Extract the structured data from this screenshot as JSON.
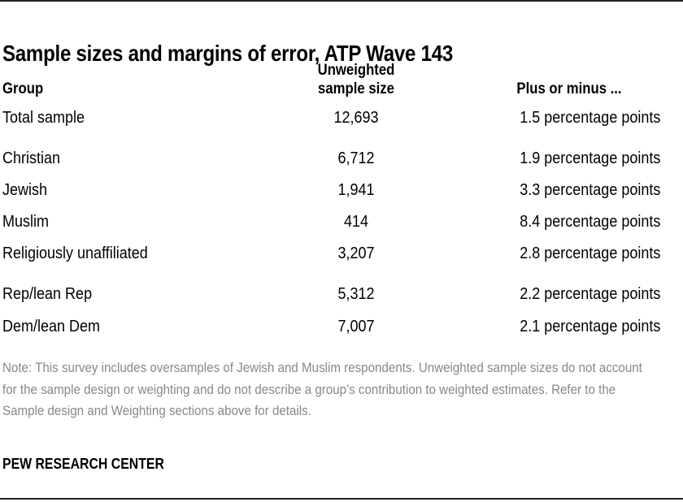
{
  "title": "Sample sizes and margins of error, ATP Wave 143",
  "columns": {
    "group": "Group",
    "sample_line1": "Unweighted",
    "sample_line2": "sample size",
    "moe": "Plus or minus ..."
  },
  "rows": [
    {
      "group": "Total sample",
      "n": "12,693",
      "moe": "1.5 percentage points"
    },
    {
      "group": "Christian",
      "n": "6,712",
      "moe": "1.9 percentage points"
    },
    {
      "group": "Jewish",
      "n": "1,941",
      "moe": "3.3 percentage points"
    },
    {
      "group": "Muslim",
      "n": "414",
      "moe": "8.4 percentage points"
    },
    {
      "group": "Religiously unaffiliated",
      "n": "3,207",
      "moe": "2.8 percentage points"
    },
    {
      "group": "Rep/lean Rep",
      "n": "5,312",
      "moe": "2.2 percentage points"
    },
    {
      "group": "Dem/lean Dem",
      "n": "7,007",
      "moe": "2.1 percentage points"
    }
  ],
  "note": "Note: This survey includes oversamples of Jewish and Muslim respondents. Unweighted sample sizes do not account for the sample design or weighting and do not describe a group’s contribution to weighted estimates. Refer to the Sample design and Weighting sections above for details.",
  "source": "PEW RESEARCH CENTER"
}
